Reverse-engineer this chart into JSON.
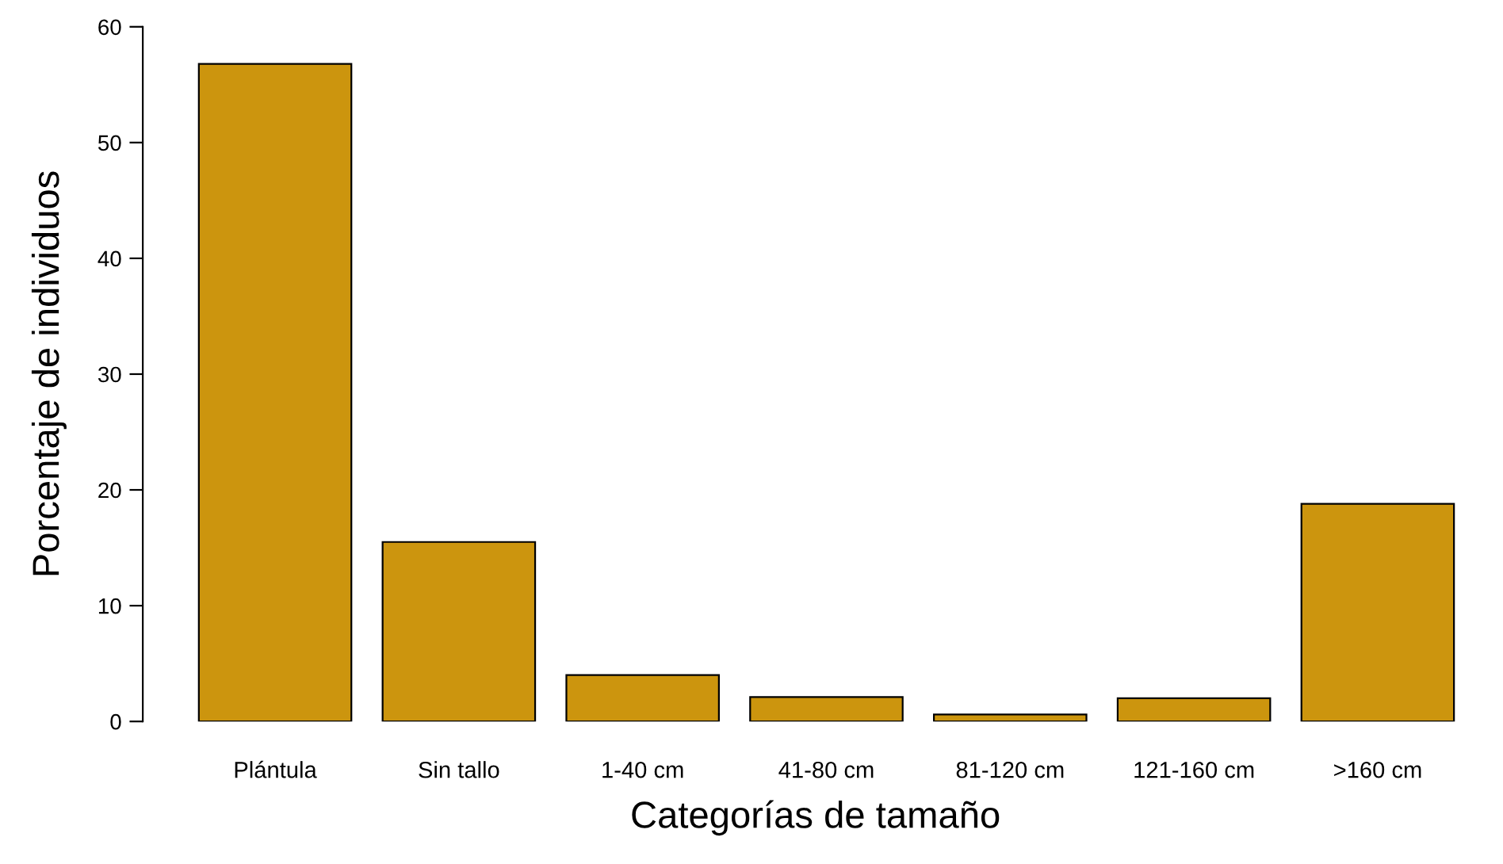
{
  "chart_data": {
    "type": "bar",
    "xlabel": "Categorías de tamaño",
    "ylabel": "Porcentaje de individuos",
    "categories": [
      "Plántula",
      "Sin tallo",
      "1-40 cm",
      "41-80 cm",
      "81-120 cm",
      "121-160 cm",
      ">160 cm"
    ],
    "values": [
      56.8,
      15.5,
      4.0,
      2.1,
      0.6,
      2.0,
      18.8
    ],
    "color": "#cc950e",
    "ylim": [
      0,
      60
    ],
    "yticks": [
      0,
      10,
      20,
      30,
      40,
      50,
      60
    ],
    "grid": false
  }
}
